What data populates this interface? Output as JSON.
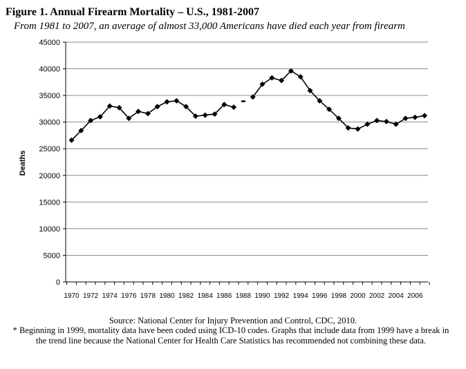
{
  "title": "Figure 1. Annual Firearm Mortality – U.S., 1981-2007",
  "subtitle": "From 1981 to 2007, an average of almost 33,000 Americans have died each year from firearm",
  "source": "Source: National Center for Injury Prevention and Control, CDC, 2010.",
  "footnote": "* Beginning in 1999, mortality data have been coded using ICD-10 codes. Graphs that include data from 1999 have a break in the trend line because the National Center for Health Care Statistics has recommended not combining these data.",
  "chart_data": {
    "type": "line",
    "title": "",
    "xlabel": "",
    "ylabel": "Deaths",
    "ylim": [
      0,
      45000
    ],
    "yticks": [
      0,
      5000,
      10000,
      15000,
      20000,
      25000,
      30000,
      35000,
      40000,
      45000
    ],
    "xticks": [
      "1970",
      "1972",
      "1974",
      "1976",
      "1978",
      "1980",
      "1982",
      "1984",
      "1986",
      "1988",
      "1990",
      "1992",
      "1994",
      "1996",
      "1998",
      "2000",
      "2002",
      "2004",
      "2006"
    ],
    "xlim": [
      1970,
      2007
    ],
    "grid": true,
    "legend": "none",
    "series": [
      {
        "segment": "1970-1987",
        "x": [
          1970,
          1971,
          1972,
          1973,
          1974,
          1975,
          1976,
          1977,
          1978,
          1979,
          1980,
          1981,
          1982,
          1983,
          1984,
          1985,
          1986,
          1987
        ],
        "y": [
          26600,
          28400,
          30300,
          31000,
          33000,
          32700,
          30700,
          32000,
          31600,
          32900,
          33800,
          34000,
          32900,
          31100,
          31300,
          31500,
          33300,
          32800
        ]
      },
      {
        "segment": "1988",
        "x": [
          1988
        ],
        "y": [
          33900
        ]
      },
      {
        "segment": "1989-2007",
        "x": [
          1989,
          1990,
          1991,
          1992,
          1993,
          1994,
          1995,
          1996,
          1997,
          1998,
          1999,
          2000,
          2001,
          2002,
          2003,
          2004,
          2005,
          2006,
          2007
        ],
        "y": [
          34700,
          37100,
          38300,
          37800,
          39600,
          38500,
          35900,
          34000,
          32400,
          30700,
          28900,
          28700,
          29600,
          30300,
          30100,
          29600,
          30700,
          30900,
          31200
        ]
      }
    ]
  }
}
